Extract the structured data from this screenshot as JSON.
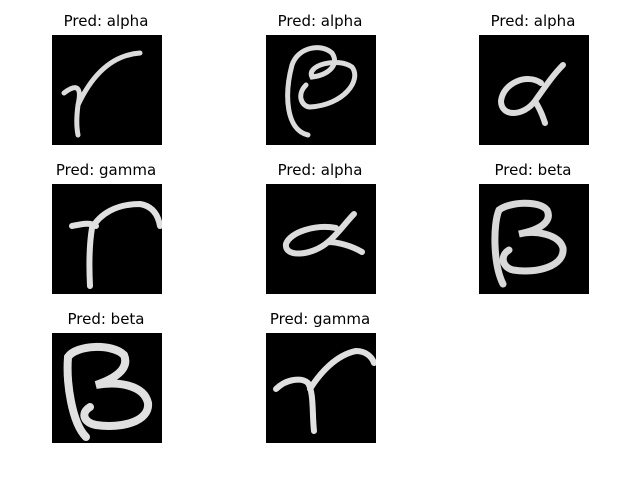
{
  "panels": [
    {
      "title": "Pred: alpha",
      "glyph": "gamma-like-stroke"
    },
    {
      "title": "Pred: alpha",
      "glyph": "beta-like-loop"
    },
    {
      "title": "Pred: alpha",
      "glyph": "alpha"
    },
    {
      "title": "Pred: gamma",
      "glyph": "gamma"
    },
    {
      "title": "Pred: alpha",
      "glyph": "alpha-sideways"
    },
    {
      "title": "Pred: beta",
      "glyph": "beta"
    },
    {
      "title": "Pred: beta",
      "glyph": "beta"
    },
    {
      "title": "Pred: gamma",
      "glyph": "gamma"
    }
  ]
}
